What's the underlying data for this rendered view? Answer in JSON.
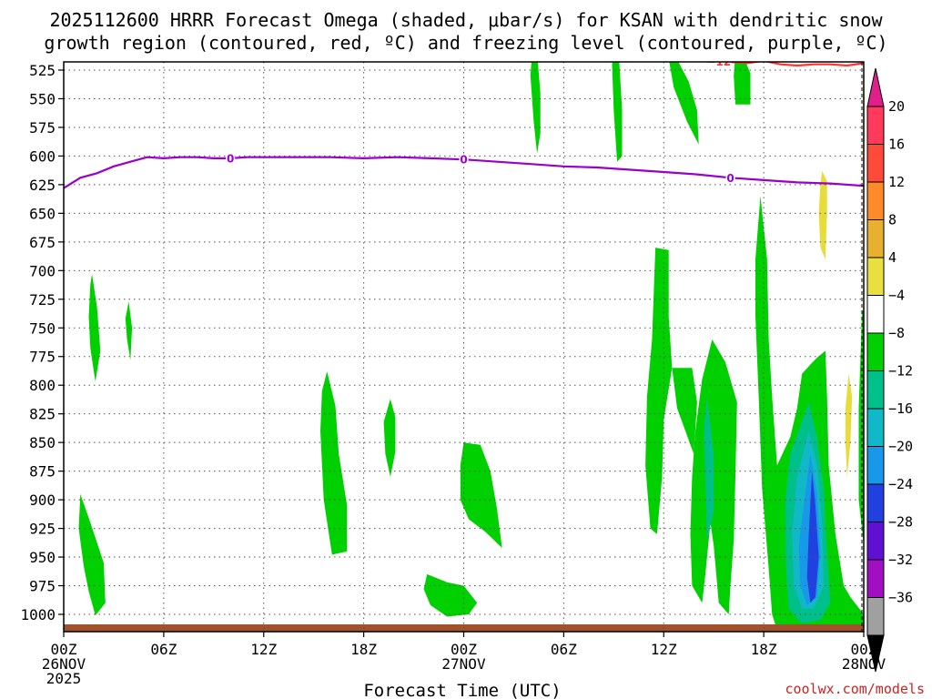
{
  "chart_data": {
    "type": "heatmap",
    "title_lines": [
      "2025112600 HRRR Forecast Omega (shaded, μbar/s) for KSAN with dendritic snow",
      "growth region (contoured, red, ºC) and freezing level (contoured, purple, ºC)"
    ],
    "xlabel": "Forecast Time (UTC)",
    "x_ticks": [
      {
        "h": 0,
        "lines": [
          "00Z",
          "26NOV",
          "2025"
        ]
      },
      {
        "h": 6,
        "lines": [
          "06Z"
        ]
      },
      {
        "h": 12,
        "lines": [
          "12Z"
        ]
      },
      {
        "h": 18,
        "lines": [
          "18Z"
        ]
      },
      {
        "h": 24,
        "lines": [
          "00Z",
          "27NOV"
        ]
      },
      {
        "h": 30,
        "lines": [
          "06Z"
        ]
      },
      {
        "h": 36,
        "lines": [
          "12Z"
        ]
      },
      {
        "h": 42,
        "lines": [
          "18Z"
        ]
      },
      {
        "h": 48,
        "lines": [
          "00Z",
          "28NOV"
        ]
      }
    ],
    "xlim": [
      0,
      48
    ],
    "y_ticks": [
      525,
      550,
      575,
      600,
      625,
      650,
      675,
      700,
      725,
      750,
      775,
      800,
      825,
      850,
      875,
      900,
      925,
      950,
      975,
      1000
    ],
    "ylim": [
      515,
      1030
    ],
    "grid": true,
    "colorbar": {
      "labels": [
        "20",
        "16",
        "12",
        "8",
        "4",
        "−4",
        "−8",
        "−12",
        "−16",
        "−20",
        "−24",
        "−28",
        "−32",
        "−36"
      ],
      "colors": [
        "#ff3a5a",
        "#ff4a3a",
        "#ff8a2a",
        "#e8b030",
        "#e8e040",
        "#ffffff",
        "#00d000",
        "#00c08a",
        "#10b8c8",
        "#1898e8",
        "#2040e0",
        "#6010d0",
        "#a010c0",
        "#a0a0a0"
      ]
    },
    "contours": {
      "freezing_level": {
        "color": "#9900cc",
        "label": "0",
        "points": [
          [
            0,
            628
          ],
          [
            1,
            619
          ],
          [
            2,
            615
          ],
          [
            3,
            609
          ],
          [
            4,
            605
          ],
          [
            5,
            601
          ],
          [
            6,
            602
          ],
          [
            7,
            601
          ],
          [
            8,
            601
          ],
          [
            9,
            602
          ],
          [
            10,
            602
          ],
          [
            11,
            601
          ],
          [
            12,
            601
          ],
          [
            14,
            601
          ],
          [
            16,
            601
          ],
          [
            18,
            602
          ],
          [
            20,
            601
          ],
          [
            22,
            602
          ],
          [
            24,
            603
          ],
          [
            26,
            605
          ],
          [
            28,
            607
          ],
          [
            30,
            609
          ],
          [
            32,
            610
          ],
          [
            34,
            612
          ],
          [
            36,
            614
          ],
          [
            38,
            616
          ],
          [
            40,
            619
          ],
          [
            42,
            621
          ],
          [
            44,
            623
          ],
          [
            46,
            624
          ],
          [
            48,
            626
          ]
        ],
        "label_h": [
          10,
          24,
          40
        ]
      },
      "dgz_minus12": {
        "color": "#ff3333",
        "label": "−12",
        "points": [
          [
            37.5,
            514
          ],
          [
            39,
            517
          ],
          [
            40,
            518
          ],
          [
            41,
            519
          ],
          [
            42,
            517
          ],
          [
            43,
            520
          ],
          [
            44,
            521
          ],
          [
            45,
            520
          ],
          [
            46,
            520
          ],
          [
            47,
            521
          ],
          [
            48,
            519
          ]
        ],
        "label_h": [
          39.3
        ]
      }
    },
    "shaded": [
      {
        "v": -6,
        "points": [
          [
            1.7,
            703
          ],
          [
            2.0,
            732
          ],
          [
            2.2,
            770
          ],
          [
            1.9,
            797
          ],
          [
            1.6,
            768
          ],
          [
            1.5,
            740
          ],
          [
            1.6,
            712
          ]
        ]
      },
      {
        "v": -6,
        "points": [
          [
            3.9,
            727
          ],
          [
            4.1,
            750
          ],
          [
            4.0,
            778
          ],
          [
            3.8,
            760
          ],
          [
            3.7,
            742
          ]
        ]
      },
      {
        "v": -6,
        "points": [
          [
            1.0,
            895
          ],
          [
            1.6,
            920
          ],
          [
            2.4,
            955
          ],
          [
            2.5,
            990
          ],
          [
            1.9,
            1001
          ],
          [
            1.5,
            980
          ],
          [
            1.2,
            958
          ],
          [
            0.9,
            925
          ]
        ]
      },
      {
        "v": -6,
        "points": [
          [
            15.8,
            788
          ],
          [
            16.3,
            818
          ],
          [
            16.5,
            860
          ],
          [
            17.0,
            905
          ],
          [
            17.0,
            945
          ],
          [
            16.1,
            948
          ],
          [
            15.6,
            900
          ],
          [
            15.4,
            840
          ],
          [
            15.5,
            805
          ]
        ]
      },
      {
        "v": -6,
        "points": [
          [
            19.6,
            812
          ],
          [
            19.9,
            828
          ],
          [
            19.9,
            858
          ],
          [
            19.6,
            880
          ],
          [
            19.3,
            860
          ],
          [
            19.2,
            832
          ]
        ]
      },
      {
        "v": -6,
        "points": [
          [
            21.8,
            965
          ],
          [
            23.0,
            972
          ],
          [
            24.0,
            975
          ],
          [
            24.8,
            990
          ],
          [
            24.3,
            1000
          ],
          [
            23.0,
            1002
          ],
          [
            22.0,
            992
          ],
          [
            21.6,
            978
          ]
        ]
      },
      {
        "v": -6,
        "points": [
          [
            24.0,
            850
          ],
          [
            25.0,
            852
          ],
          [
            25.6,
            875
          ],
          [
            26.0,
            908
          ],
          [
            26.3,
            942
          ],
          [
            25.3,
            928
          ],
          [
            24.3,
            917
          ],
          [
            23.8,
            900
          ],
          [
            23.8,
            870
          ]
        ]
      },
      {
        "v": -6,
        "points": [
          [
            28.4,
            510
          ],
          [
            28.6,
            545
          ],
          [
            28.6,
            580
          ],
          [
            28.4,
            598
          ],
          [
            28.2,
            570
          ],
          [
            28.0,
            530
          ],
          [
            28.1,
            510
          ]
        ]
      },
      {
        "v": -6,
        "points": [
          [
            33.3,
            510
          ],
          [
            33.5,
            560
          ],
          [
            33.5,
            600
          ],
          [
            33.2,
            605
          ],
          [
            33.0,
            560
          ],
          [
            32.9,
            520
          ],
          [
            33.0,
            510
          ]
        ]
      },
      {
        "v": -6,
        "points": [
          [
            36.6,
            510
          ],
          [
            37.5,
            535
          ],
          [
            38.0,
            560
          ],
          [
            38.1,
            590
          ],
          [
            37.4,
            570
          ],
          [
            36.6,
            540
          ],
          [
            36.3,
            515
          ]
        ]
      },
      {
        "v": -6,
        "points": [
          [
            40.7,
            510
          ],
          [
            41.2,
            528
          ],
          [
            41.2,
            555
          ],
          [
            40.3,
            555
          ],
          [
            40.2,
            530
          ],
          [
            40.3,
            510
          ]
        ]
      },
      {
        "v": -6,
        "points": [
          [
            35.5,
            680
          ],
          [
            36.3,
            682
          ],
          [
            36.3,
            740
          ],
          [
            36.5,
            785
          ],
          [
            36.0,
            830
          ],
          [
            35.9,
            880
          ],
          [
            35.6,
            930
          ],
          [
            35.2,
            925
          ],
          [
            34.9,
            870
          ],
          [
            35.0,
            810
          ],
          [
            35.3,
            760
          ]
        ]
      },
      {
        "v": -6,
        "points": [
          [
            36.5,
            785
          ],
          [
            37.7,
            785
          ],
          [
            38.0,
            815
          ],
          [
            37.8,
            860
          ],
          [
            37.3,
            840
          ],
          [
            36.8,
            820
          ]
        ]
      },
      {
        "v": -6,
        "points": [
          [
            38.3,
            795
          ],
          [
            38.9,
            760
          ],
          [
            39.7,
            780
          ],
          [
            40.4,
            815
          ],
          [
            40.3,
            880
          ],
          [
            40.2,
            935
          ],
          [
            40.0,
            975
          ],
          [
            39.9,
            1000
          ],
          [
            39.3,
            990
          ],
          [
            39.0,
            940
          ],
          [
            38.8,
            920
          ],
          [
            38.5,
            965
          ],
          [
            38.3,
            990
          ],
          [
            37.7,
            975
          ],
          [
            37.6,
            930
          ],
          [
            37.7,
            880
          ],
          [
            37.9,
            840
          ]
        ]
      },
      {
        "v": -6,
        "points": [
          [
            41.8,
            635
          ],
          [
            42.2,
            690
          ],
          [
            42.3,
            760
          ],
          [
            42.5,
            810
          ],
          [
            42.8,
            870
          ],
          [
            43.6,
            845
          ],
          [
            44.0,
            820
          ],
          [
            44.3,
            790
          ],
          [
            44.8,
            782
          ],
          [
            45.2,
            776
          ],
          [
            45.7,
            770
          ],
          [
            45.8,
            810
          ],
          [
            45.9,
            870
          ],
          [
            46.3,
            930
          ],
          [
            46.8,
            975
          ],
          [
            47.2,
            985
          ],
          [
            48.0,
            1000
          ],
          [
            48.0,
            1015
          ],
          [
            46.3,
            1020
          ],
          [
            44.2,
            1020
          ],
          [
            42.9,
            1018
          ],
          [
            42.5,
            1000
          ],
          [
            42.3,
            960
          ],
          [
            41.9,
            890
          ],
          [
            41.7,
            810
          ],
          [
            41.5,
            740
          ],
          [
            41.5,
            690
          ]
        ]
      },
      {
        "v": -6,
        "points": [
          [
            47.9,
            735
          ],
          [
            48.0,
            735
          ],
          [
            48.0,
            940
          ],
          [
            47.7,
            900
          ],
          [
            47.7,
            820
          ]
        ]
      },
      {
        "v": -10,
        "points": [
          [
            38.6,
            810
          ],
          [
            39.0,
            860
          ],
          [
            39.0,
            910
          ],
          [
            38.6,
            935
          ],
          [
            38.5,
            880
          ],
          [
            38.4,
            840
          ]
        ]
      },
      {
        "v": -10,
        "points": [
          [
            43.6,
            860
          ],
          [
            44.7,
            815
          ],
          [
            45.2,
            845
          ],
          [
            45.6,
            890
          ],
          [
            45.8,
            945
          ],
          [
            46.0,
            990
          ],
          [
            45.4,
            1005
          ],
          [
            44.3,
            1008
          ],
          [
            43.5,
            995
          ],
          [
            43.3,
            950
          ],
          [
            43.3,
            900
          ]
        ]
      },
      {
        "v": -14,
        "points": [
          [
            44.0,
            880
          ],
          [
            44.7,
            840
          ],
          [
            45.2,
            870
          ],
          [
            45.5,
            920
          ],
          [
            45.6,
            975
          ],
          [
            45.0,
            995
          ],
          [
            44.3,
            995
          ],
          [
            43.8,
            975
          ],
          [
            43.7,
            930
          ]
        ]
      },
      {
        "v": -18,
        "points": [
          [
            44.4,
            905
          ],
          [
            44.8,
            860
          ],
          [
            45.2,
            895
          ],
          [
            45.4,
            945
          ],
          [
            45.2,
            985
          ],
          [
            44.6,
            992
          ],
          [
            44.2,
            975
          ],
          [
            44.1,
            940
          ]
        ]
      },
      {
        "v": -22,
        "points": [
          [
            44.7,
            930
          ],
          [
            44.9,
            875
          ],
          [
            45.1,
            905
          ],
          [
            45.3,
            950
          ],
          [
            45.1,
            985
          ],
          [
            44.8,
            990
          ],
          [
            44.6,
            968
          ]
        ]
      },
      {
        "v": 6,
        "points": [
          [
            45.5,
            613
          ],
          [
            45.8,
            622
          ],
          [
            45.8,
            650
          ],
          [
            45.7,
            690
          ],
          [
            45.4,
            680
          ],
          [
            45.3,
            650
          ],
          [
            45.4,
            625
          ]
        ]
      },
      {
        "v": 6,
        "points": [
          [
            47.1,
            790
          ],
          [
            47.3,
            810
          ],
          [
            47.2,
            850
          ],
          [
            47.0,
            880
          ],
          [
            46.9,
            850
          ],
          [
            46.9,
            820
          ]
        ]
      },
      {
        "v": 6,
        "points": [
          [
            47.95,
            530
          ],
          [
            48.0,
            530
          ],
          [
            48.0,
            620
          ],
          [
            47.95,
            600
          ]
        ]
      },
      {
        "v": 14,
        "points": [
          [
            48.0,
            555
          ],
          [
            48.0,
            575
          ],
          [
            48.0,
            565
          ]
        ]
      }
    ]
  },
  "credit": "coolwx.com/models"
}
